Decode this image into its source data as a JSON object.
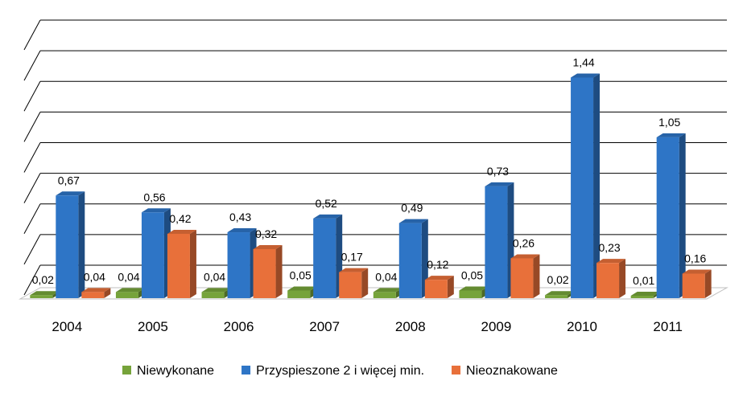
{
  "chart_data": {
    "type": "bar",
    "categories": [
      "2004",
      "2005",
      "2006",
      "2007",
      "2008",
      "2009",
      "2010",
      "2011"
    ],
    "series": [
      {
        "name": "Niewykonane",
        "values": [
          0.02,
          0.04,
          0.04,
          0.05,
          0.04,
          0.05,
          0.02,
          0.01
        ],
        "labels": [
          "0,02",
          "0,04",
          "0,04",
          "0,05",
          "0,04",
          "0,05",
          "0,02",
          "0,01"
        ],
        "color": "#76A33A"
      },
      {
        "name": "Przyspieszone 2 i więcej min.",
        "values": [
          0.67,
          0.56,
          0.43,
          0.52,
          0.49,
          0.73,
          1.44,
          1.05
        ],
        "labels": [
          "0,67",
          "0,56",
          "0,43",
          "0,52",
          "0,49",
          "0,73",
          "1,44",
          "1,05"
        ],
        "color": "#2E75C6"
      },
      {
        "name": "Nieoznakowane",
        "values": [
          0.04,
          0.42,
          0.32,
          0.17,
          0.12,
          0.26,
          0.23,
          0.16
        ],
        "labels": [
          "0,04",
          "0,42",
          "0,32",
          "0,17",
          "0,12",
          "0,26",
          "0,23",
          "0,16"
        ],
        "color": "#E8703A"
      }
    ],
    "ylim": [
      0,
      1.6
    ],
    "grid": true,
    "legend": "bottom",
    "style": "3d-clustered-bar"
  }
}
